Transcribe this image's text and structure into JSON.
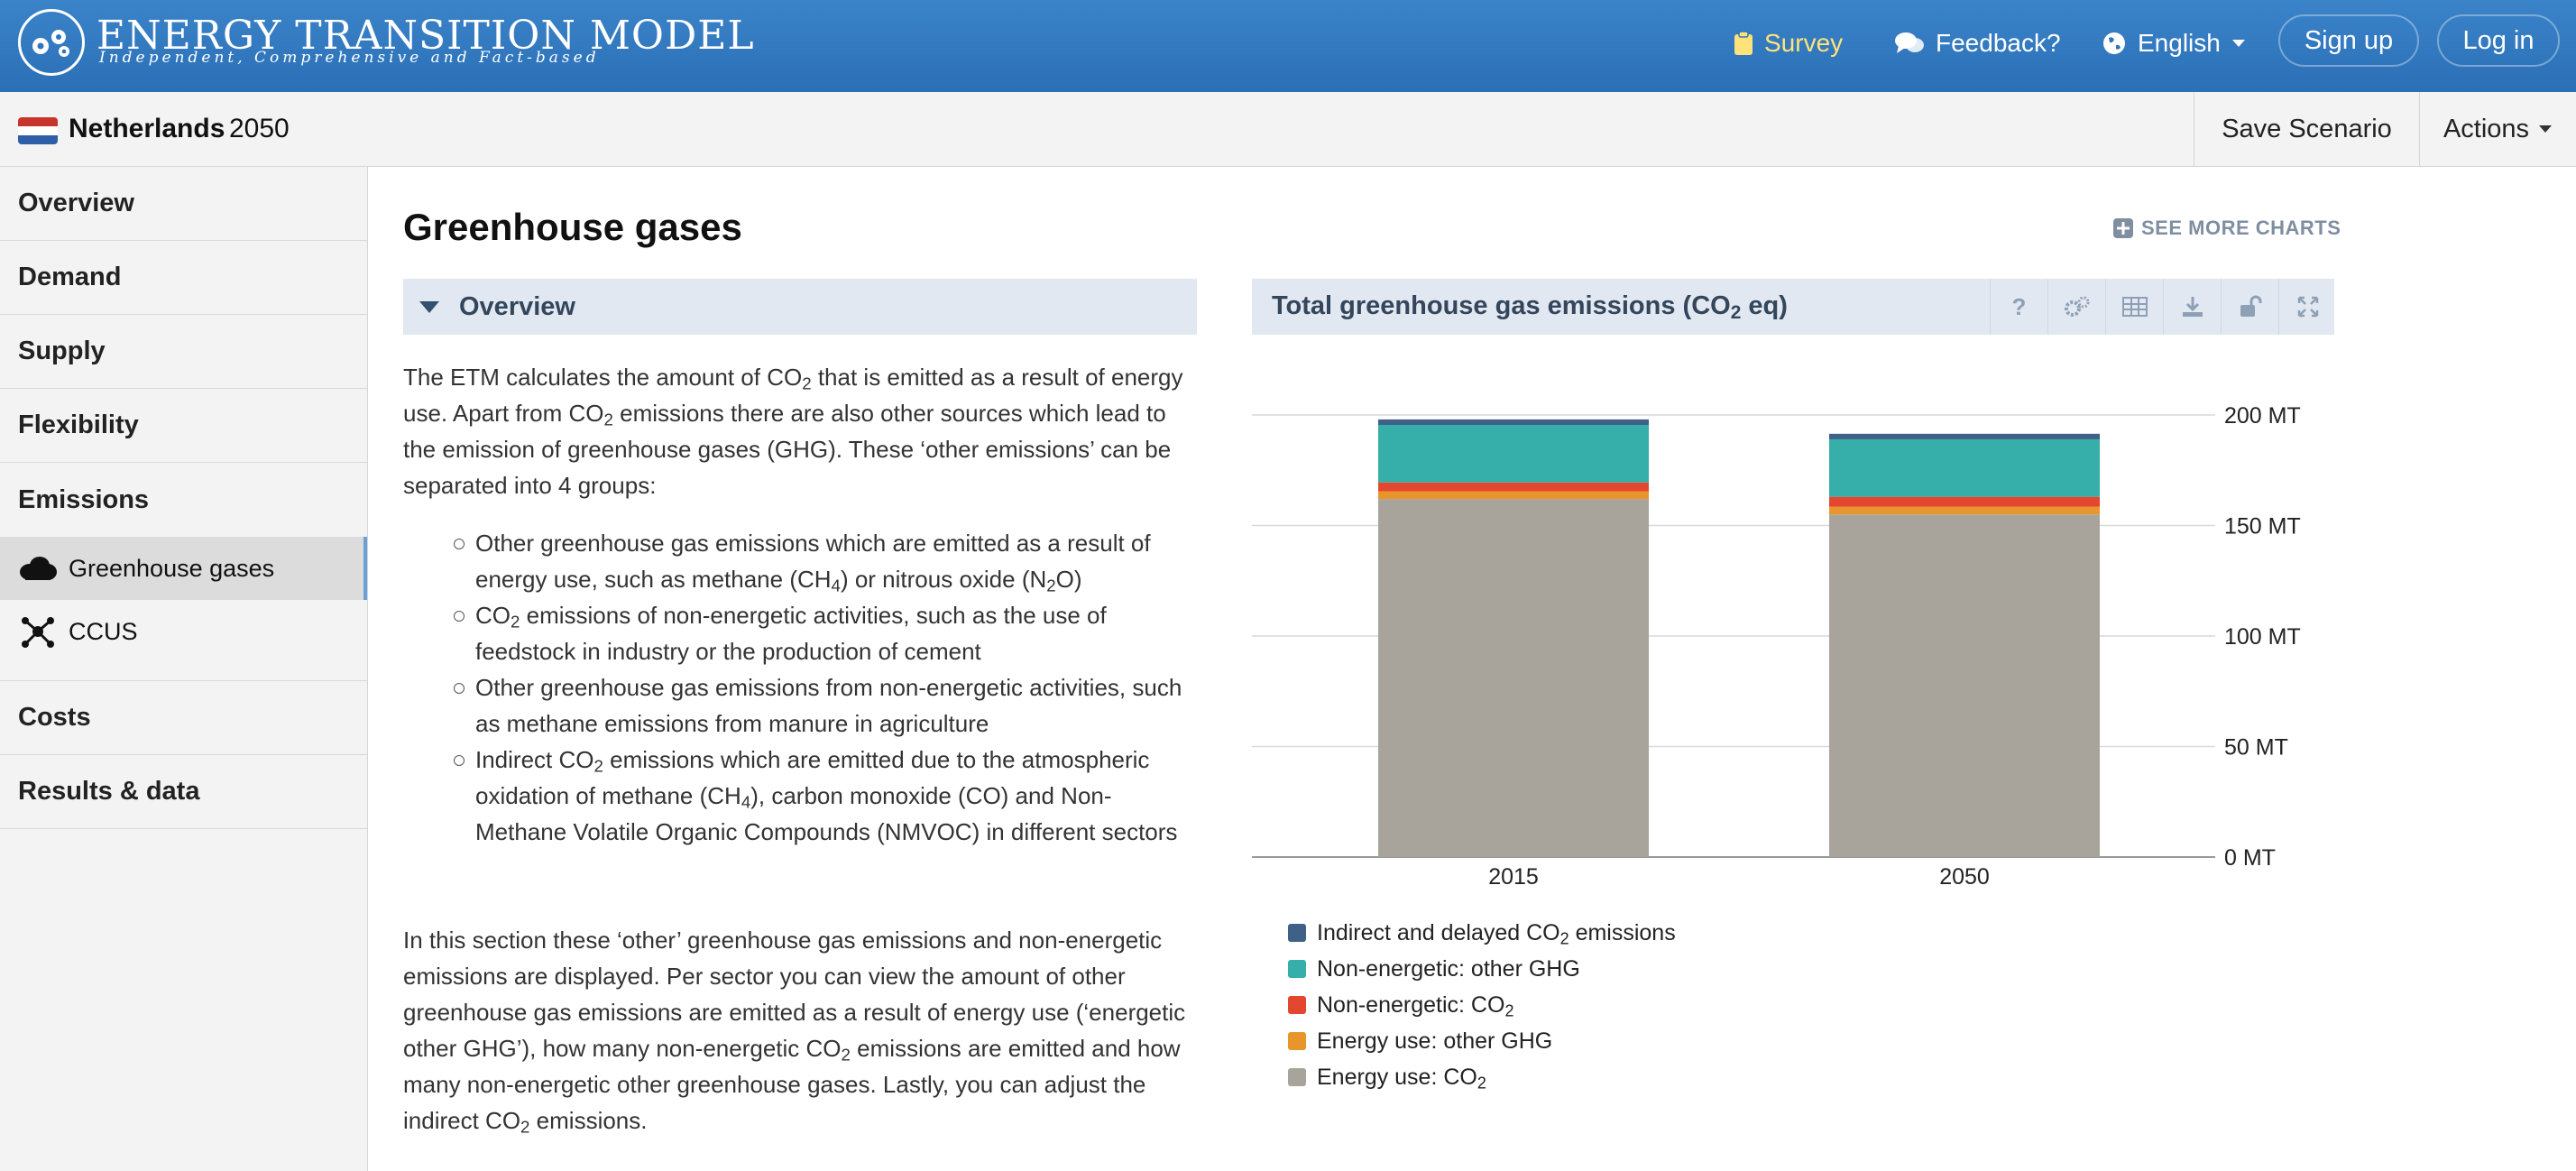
{
  "header": {
    "brand_title": "ENERGY TRANSITION MODEL",
    "brand_subtitle": "Independent, Comprehensive and Fact-based",
    "survey": "Survey",
    "feedback": "Feedback?",
    "language": "English",
    "signup": "Sign up",
    "login": "Log in"
  },
  "scenario": {
    "region": "Netherlands",
    "year": "2050",
    "save": "Save Scenario",
    "actions": "Actions"
  },
  "sidebar": {
    "items": [
      "Overview",
      "Demand",
      "Supply",
      "Flexibility",
      "Emissions"
    ],
    "sub_items": [
      "Greenhouse gases",
      "CCUS"
    ],
    "items_after": [
      "Costs",
      "Results & data"
    ]
  },
  "main": {
    "title": "Greenhouse gases",
    "see_more": "SEE MORE CHARTS",
    "section": "Overview",
    "p1_a": "The ETM calculates the amount of CO",
    "p1_b": " that is emitted as a result of energy use. Apart from CO",
    "p1_c": " emissions there are also other sources which lead to the emission of greenhouse gases (GHG). These ‘other emissions’ can be separated into 4 groups:",
    "b1_a": "Other greenhouse gas emissions which are emitted as a result of energy use, such as methane (CH",
    "b1_b": ") or nitrous oxide (N",
    "b1_c": "O)",
    "b2_a": "CO",
    "b2_b": " emissions of non-energetic activities, such as the use of feedstock in industry or the production of cement",
    "b3": "Other greenhouse gas emissions from non-energetic activities, such as methane emissions from manure in agriculture",
    "b4_a": "Indirect CO",
    "b4_b": " emissions which are emitted due to the atmospheric oxidation of methane (CH",
    "b4_c": "), carbon monoxide (CO) and Non-Methane Volatile Organic Compounds (NMVOC) in different sectors",
    "p2_a": "In this section these ‘other’ greenhouse gas emissions and non-energetic emissions are displayed. Per sector you can view the amount of other greenhouse gas emissions are emitted as a result of energy use (‘energetic other GHG’), how many non-energetic CO",
    "p2_b": " emissions are emitted and how many non-energetic other greenhouse gases. Lastly, you can adjust the indirect CO",
    "p2_c": " emissions.",
    "sub2": "2",
    "sub4": "4"
  },
  "chart_panel": {
    "title_a": "Total greenhouse gas emissions (CO",
    "title_b": " eq)",
    "tools": [
      "help-icon",
      "settings-icon",
      "table-icon",
      "download-icon",
      "unlock-icon",
      "expand-icon"
    ],
    "help_label": "?"
  },
  "chart_data": {
    "type": "bar",
    "stacked": true,
    "categories": [
      "2015",
      "2050"
    ],
    "y_ticks": [
      "0 MT",
      "50 MT",
      "100 MT",
      "150 MT",
      "200 MT"
    ],
    "ylim": [
      0,
      200
    ],
    "y_unit": "MT",
    "grid": true,
    "legend_position": "bottom-left",
    "series": [
      {
        "name": "Energy use: CO2",
        "values": [
          162,
          155
        ],
        "color": "#a8a49b"
      },
      {
        "name": "Energy use: other GHG",
        "values": [
          3.5,
          3.5
        ],
        "color": "#e8962c"
      },
      {
        "name": "Non-energetic: CO2",
        "values": [
          4,
          4.5
        ],
        "color": "#e3472f"
      },
      {
        "name": "Non-energetic: other GHG",
        "values": [
          26,
          26
        ],
        "color": "#36aeaa"
      },
      {
        "name": "Indirect and delayed CO2 emissions",
        "values": [
          2.5,
          2.5
        ],
        "color": "#3f6187"
      }
    ],
    "legend_labels": [
      {
        "a": "Indirect and delayed CO",
        "sub": "2",
        "b": " emissions",
        "color": "#3f6187"
      },
      {
        "a": "Non-energetic: other GHG",
        "sub": "",
        "b": "",
        "color": "#36aeaa"
      },
      {
        "a": "Non-energetic: CO",
        "sub": "2",
        "b": "",
        "color": "#e3472f"
      },
      {
        "a": "Energy use: other GHG",
        "sub": "",
        "b": "",
        "color": "#e8962c"
      },
      {
        "a": "Energy use: CO",
        "sub": "2",
        "b": "",
        "color": "#a8a49b"
      }
    ]
  }
}
